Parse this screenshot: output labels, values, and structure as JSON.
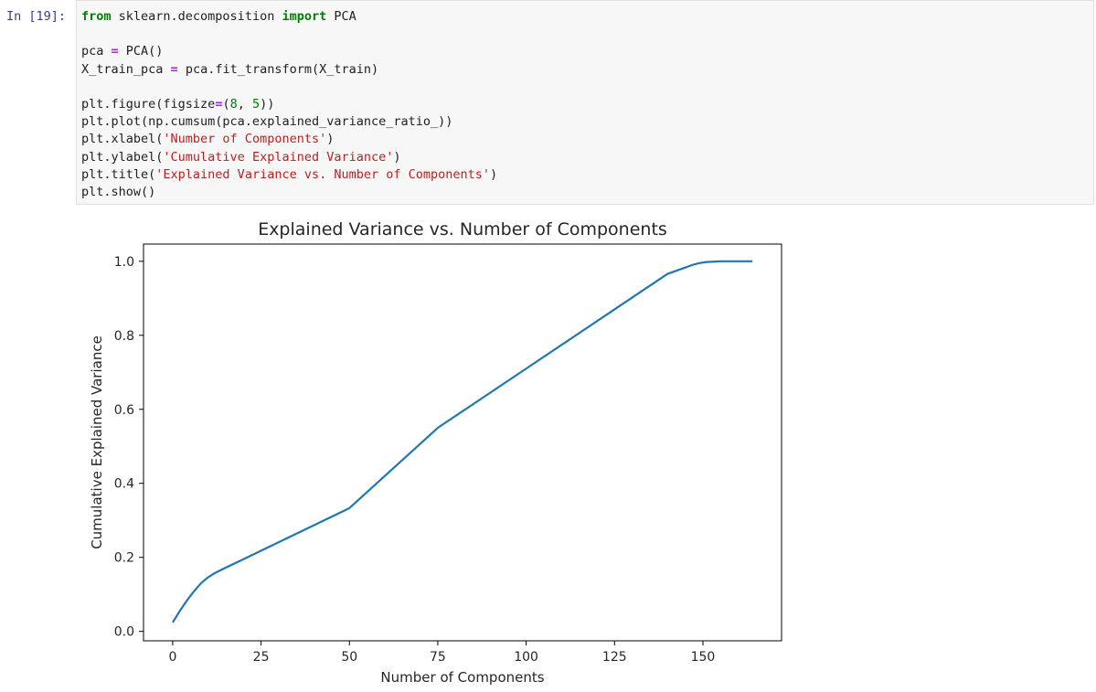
{
  "cell": {
    "prompt": "In [19]:",
    "lines": [
      [
        {
          "t": "from",
          "c": "kw"
        },
        {
          "t": " sklearn.decomposition ",
          "c": ""
        },
        {
          "t": "import",
          "c": "kw"
        },
        {
          "t": " PCA",
          "c": ""
        }
      ],
      [],
      [
        {
          "t": "pca ",
          "c": ""
        },
        {
          "t": "=",
          "c": "op"
        },
        {
          "t": " PCA()",
          "c": ""
        }
      ],
      [
        {
          "t": "X_train_pca ",
          "c": ""
        },
        {
          "t": "=",
          "c": "op"
        },
        {
          "t": " pca.fit_transform(X_train)",
          "c": ""
        }
      ],
      [],
      [
        {
          "t": "plt.figure(figsize",
          "c": ""
        },
        {
          "t": "=",
          "c": "op"
        },
        {
          "t": "(",
          "c": ""
        },
        {
          "t": "8",
          "c": "num"
        },
        {
          "t": ", ",
          "c": ""
        },
        {
          "t": "5",
          "c": "num"
        },
        {
          "t": "))",
          "c": ""
        }
      ],
      [
        {
          "t": "plt.plot(np.cumsum(pca.explained_variance_ratio_))",
          "c": ""
        }
      ],
      [
        {
          "t": "plt.xlabel(",
          "c": ""
        },
        {
          "t": "'Number of Components'",
          "c": "str"
        },
        {
          "t": ")",
          "c": ""
        }
      ],
      [
        {
          "t": "plt.ylabel(",
          "c": ""
        },
        {
          "t": "'Cumulative Explained Variance'",
          "c": "str"
        },
        {
          "t": ")",
          "c": ""
        }
      ],
      [
        {
          "t": "plt.title(",
          "c": ""
        },
        {
          "t": "'Explained Variance vs. Number of Components'",
          "c": "str"
        },
        {
          "t": ")",
          "c": ""
        }
      ],
      [
        {
          "t": "plt.show()",
          "c": ""
        }
      ]
    ]
  },
  "chart_data": {
    "type": "line",
    "title": "Explained Variance vs. Number of Components",
    "xlabel": "Number of Components",
    "ylabel": "Cumulative Explained Variance",
    "xlim": [
      -8.25,
      172.25
    ],
    "ylim": [
      -0.0255,
      1.0465
    ],
    "xticks": [
      0,
      25,
      50,
      75,
      100,
      125,
      150
    ],
    "yticks": [
      0.0,
      0.2,
      0.4,
      0.6,
      0.8,
      1.0
    ],
    "ytick_labels": [
      "0.0",
      "0.2",
      "0.4",
      "0.6",
      "0.8",
      "1.0"
    ],
    "grid": false,
    "line_color": "#1f77b4",
    "series": [
      {
        "x": [
          0,
          2,
          4,
          6,
          8,
          10,
          12,
          15,
          20,
          30,
          50,
          75,
          100,
          125,
          140,
          145,
          147,
          149,
          151,
          153,
          155,
          160,
          164
        ],
        "values": [
          0.024,
          0.055,
          0.083,
          0.108,
          0.13,
          0.146,
          0.158,
          0.172,
          0.195,
          0.241,
          0.333,
          0.55,
          0.71,
          0.87,
          0.966,
          0.983,
          0.99,
          0.995,
          0.998,
          0.999,
          1.0,
          1.0,
          1.0
        ]
      }
    ]
  }
}
